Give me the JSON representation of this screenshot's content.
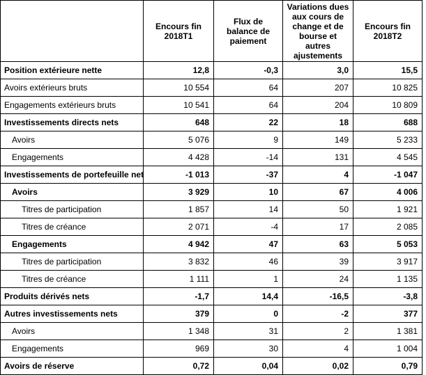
{
  "headers": [
    "",
    "Encours fin 2018T1",
    "Flux de balance de paiement",
    "Variations dues aux cours de change et de bourse et autres ajustements",
    "Encours  fin 2018T2"
  ],
  "rows": [
    {
      "label": "Position extérieure nette",
      "values": [
        "12,8",
        "-0,3",
        "3,0",
        "15,5"
      ],
      "bold": true,
      "indent": 0
    },
    {
      "label": "Avoirs extérieurs bruts",
      "values": [
        "10 554",
        "64",
        "207",
        "10 825"
      ],
      "bold": false,
      "indent": 0
    },
    {
      "label": "Engagements extérieurs bruts",
      "values": [
        "10 541",
        "64",
        "204",
        "10 809"
      ],
      "bold": false,
      "indent": 0
    },
    {
      "label": "Investissements directs nets",
      "values": [
        "648",
        "22",
        "18",
        "688"
      ],
      "bold": true,
      "indent": 0
    },
    {
      "label": "Avoirs",
      "values": [
        "5 076",
        "9",
        "149",
        "5 233"
      ],
      "bold": false,
      "indent": 1
    },
    {
      "label": "Engagements",
      "values": [
        "4 428",
        "-14",
        "131",
        "4 545"
      ],
      "bold": false,
      "indent": 1
    },
    {
      "label": "Investissements de portefeuille nets",
      "values": [
        "-1 013",
        "-37",
        "4",
        "-1 047"
      ],
      "bold": true,
      "indent": 0
    },
    {
      "label": "Avoirs",
      "values": [
        "3 929",
        "10",
        "67",
        "4 006"
      ],
      "bold": true,
      "indent": 1
    },
    {
      "label": "Titres de participation",
      "values": [
        "1 857",
        "14",
        "50",
        "1 921"
      ],
      "bold": false,
      "indent": 2
    },
    {
      "label": "Titres de créance",
      "values": [
        "2 071",
        "-4",
        "17",
        "2 085"
      ],
      "bold": false,
      "indent": 2
    },
    {
      "label": "Engagements",
      "values": [
        "4 942",
        "47",
        "63",
        "5 053"
      ],
      "bold": true,
      "indent": 1
    },
    {
      "label": "Titres de participation",
      "values": [
        "3 832",
        "46",
        "39",
        "3 917"
      ],
      "bold": false,
      "indent": 2
    },
    {
      "label": "Titres de créance",
      "values": [
        "1 111",
        "1",
        "24",
        "1 135"
      ],
      "bold": false,
      "indent": 2
    },
    {
      "label": "Produits dérivés nets",
      "values": [
        "-1,7",
        "14,4",
        "-16,5",
        "-3,8"
      ],
      "bold": true,
      "indent": 0
    },
    {
      "label": "Autres investissements nets",
      "values": [
        "379",
        "0",
        "-2",
        "377"
      ],
      "bold": true,
      "indent": 0
    },
    {
      "label": "Avoirs",
      "values": [
        "1 348",
        "31",
        "2",
        "1 381"
      ],
      "bold": false,
      "indent": 1
    },
    {
      "label": "Engagements",
      "values": [
        "969",
        "30",
        "4",
        "1 004"
      ],
      "bold": false,
      "indent": 1
    },
    {
      "label": "Avoirs de réserve",
      "values": [
        "0,72",
        "0,04",
        "0,02",
        "0,79"
      ],
      "bold": true,
      "indent": 0
    }
  ]
}
